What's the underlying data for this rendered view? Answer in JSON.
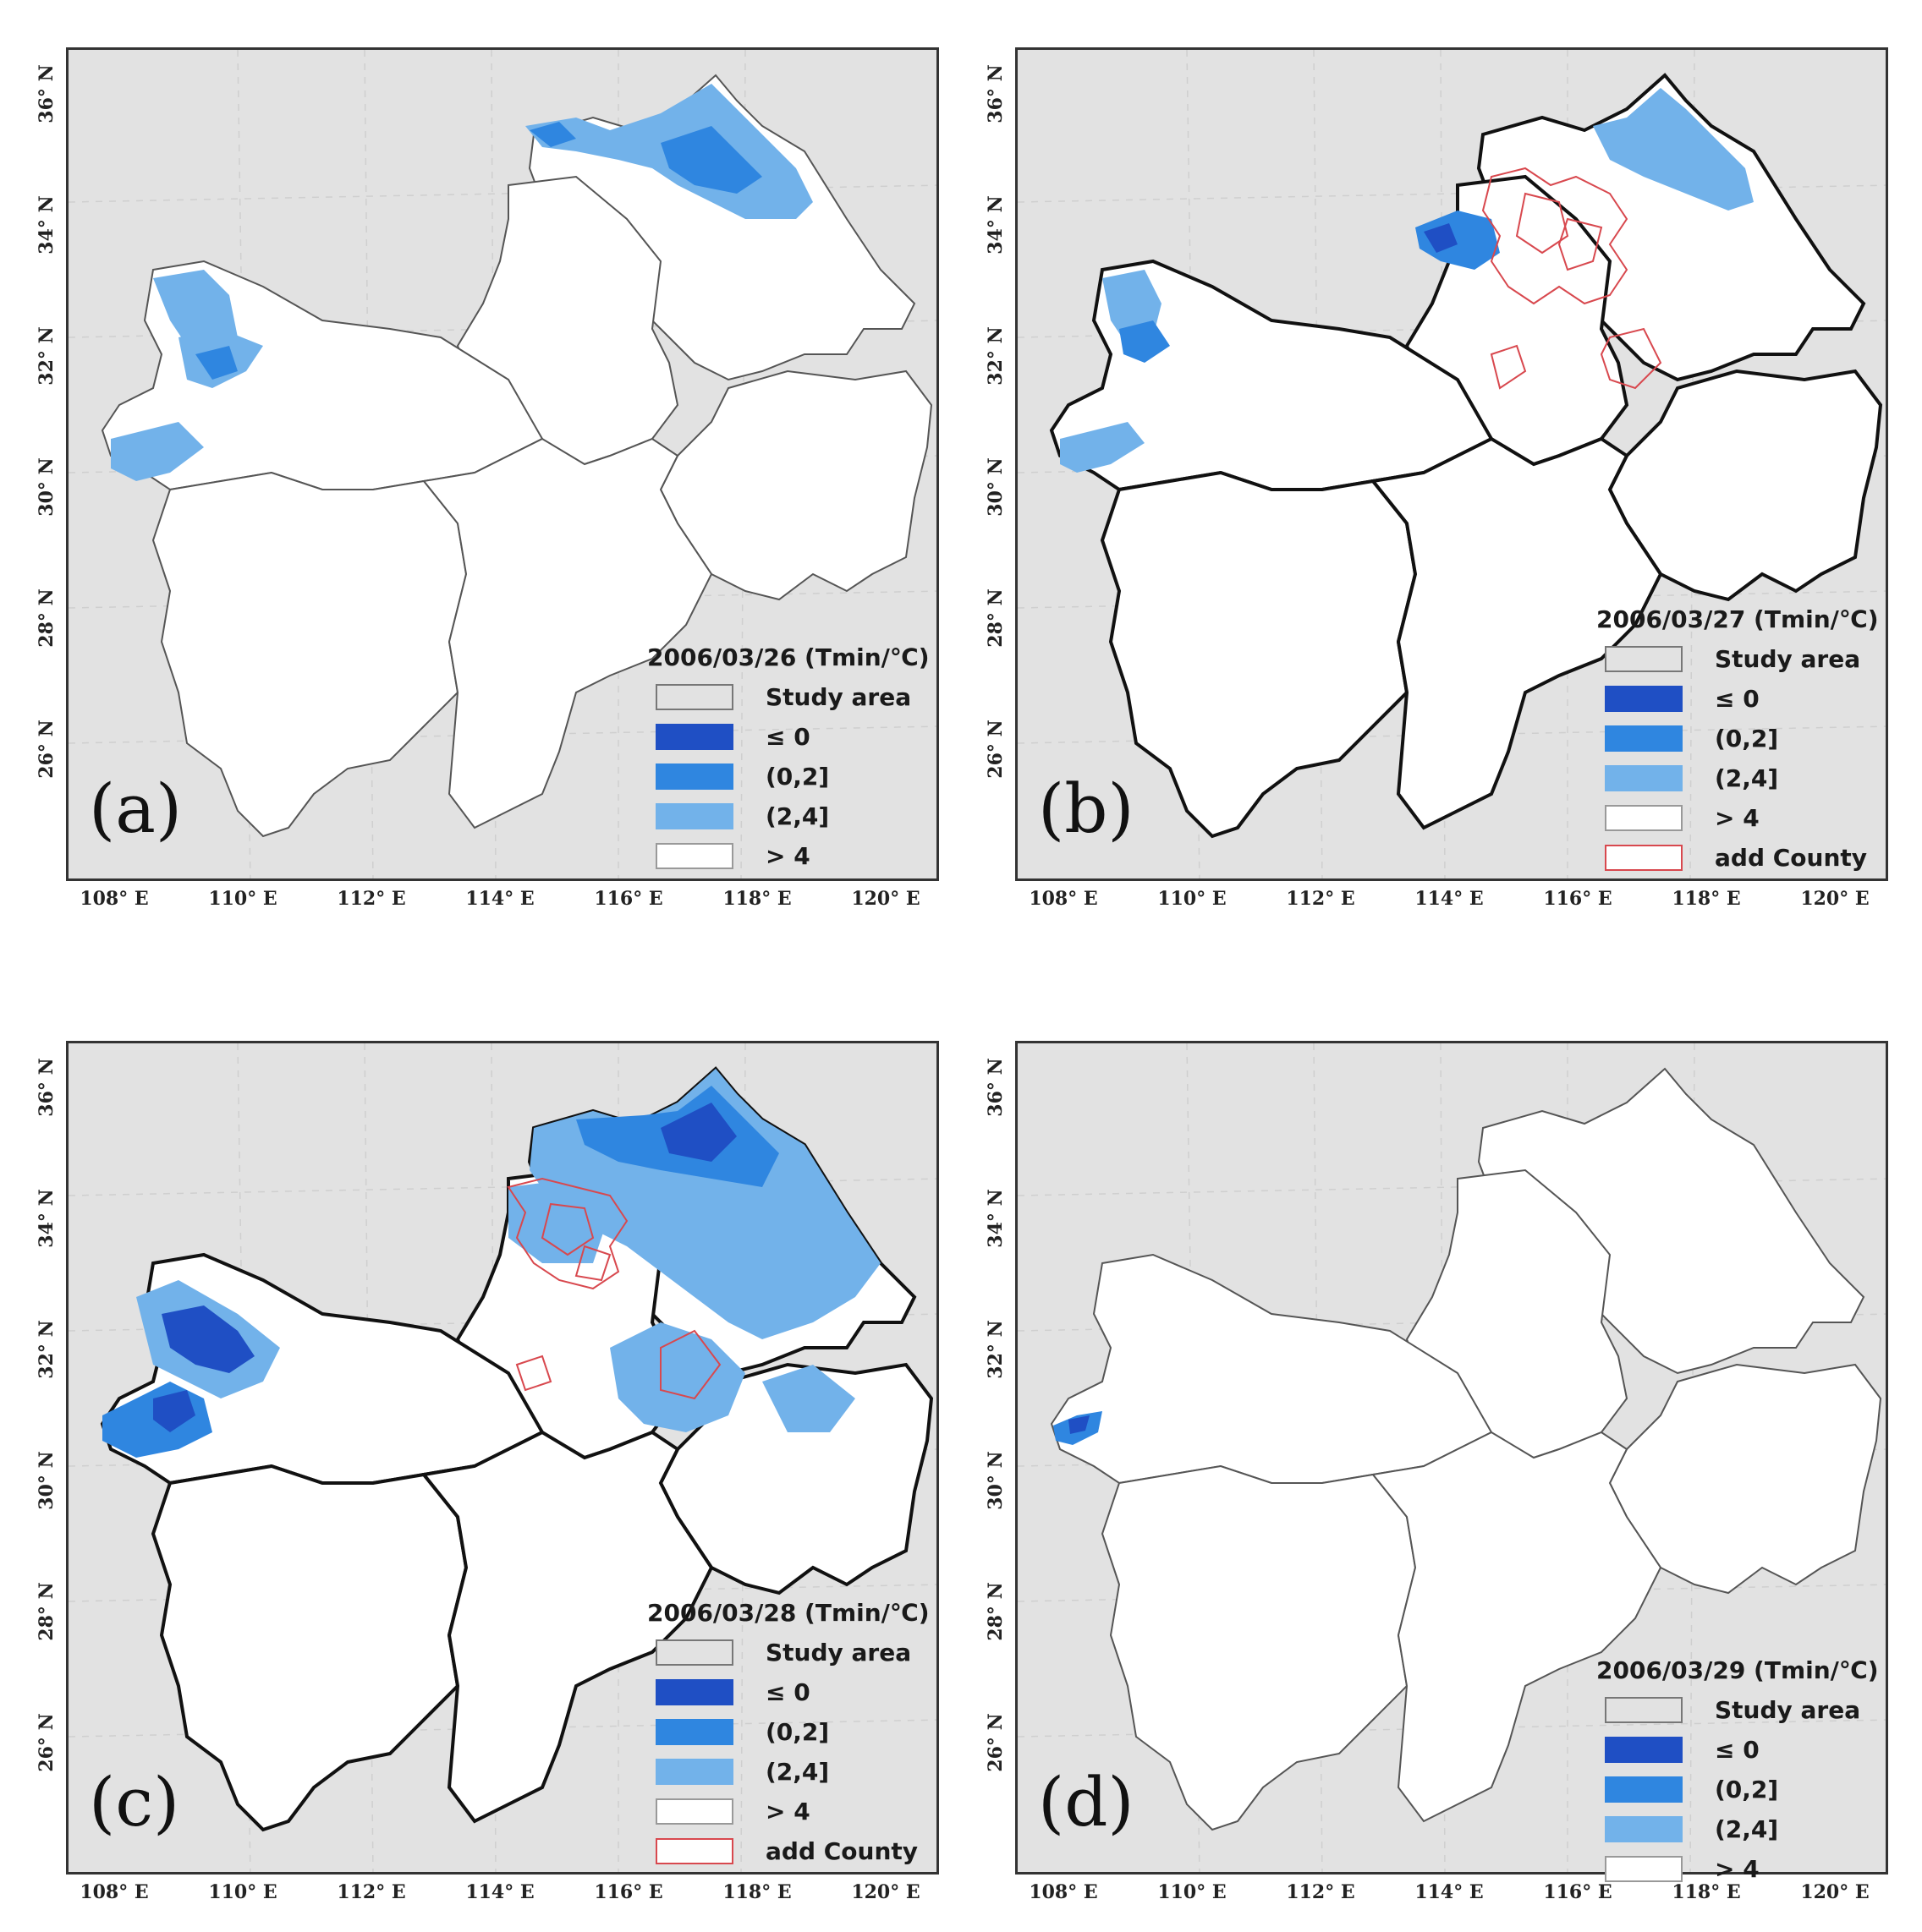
{
  "axes": {
    "y_ticks": [
      "36° N",
      "34° N",
      "32° N",
      "30° N",
      "28° N",
      "26° N"
    ],
    "x_ticks": [
      "108° E",
      "110° E",
      "112° E",
      "114° E",
      "116° E",
      "118° E",
      "120° E"
    ]
  },
  "legend_classes": {
    "study_area": {
      "label": "Study area",
      "color": "#e2e2e2",
      "border": "#777777"
    },
    "le0": {
      "label": "≤ 0",
      "color": "#1f4fc4"
    },
    "c0_2": {
      "label": "(0,2]",
      "color": "#2f86e0"
    },
    "c2_4": {
      "label": "(2,4]",
      "color": "#72b2ea"
    },
    "gt4": {
      "label": "> 4",
      "color": "#ffffff"
    },
    "county": {
      "label": "add County",
      "color": "#d8484e"
    }
  },
  "panels": [
    {
      "id": "a",
      "letter": "(a)",
      "title": "2006/03/26 (Tmin/℃)",
      "show_county": false
    },
    {
      "id": "b",
      "letter": "(b)",
      "title": "2006/03/27 (Tmin/℃)",
      "show_county": true
    },
    {
      "id": "c",
      "letter": "(c)",
      "title": "2006/03/28 (Tmin/℃)",
      "show_county": true
    },
    {
      "id": "d",
      "letter": "(d)",
      "title": "2006/03/29 (Tmin/℃)",
      "show_county": false
    }
  ]
}
